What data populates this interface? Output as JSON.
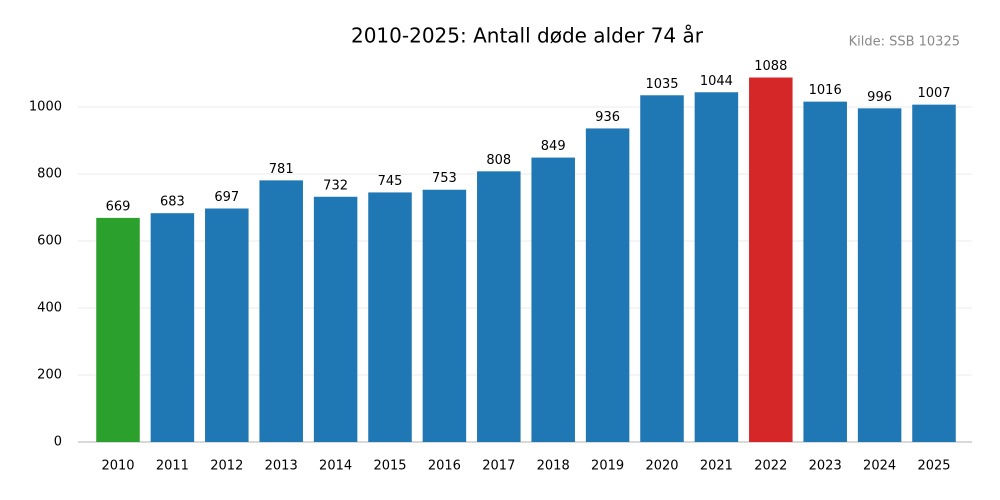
{
  "chart_data": {
    "type": "bar",
    "title": "2010-2025: Antall døde alder 74 år",
    "source": "Kilde: SSB 10325",
    "categories": [
      "2010",
      "2011",
      "2012",
      "2013",
      "2014",
      "2015",
      "2016",
      "2017",
      "2018",
      "2019",
      "2020",
      "2021",
      "2022",
      "2023",
      "2024",
      "2025"
    ],
    "values": [
      669,
      683,
      697,
      781,
      732,
      745,
      753,
      808,
      849,
      936,
      1035,
      1044,
      1088,
      1016,
      996,
      1007
    ],
    "colors": [
      "#2ca02c",
      "#1f77b4",
      "#1f77b4",
      "#1f77b4",
      "#1f77b4",
      "#1f77b4",
      "#1f77b4",
      "#1f77b4",
      "#1f77b4",
      "#1f77b4",
      "#1f77b4",
      "#1f77b4",
      "#d62728",
      "#1f77b4",
      "#1f77b4",
      "#1f77b4"
    ],
    "ylim": [
      0,
      1130
    ],
    "yticks": [
      0,
      200,
      400,
      600,
      800,
      1000
    ],
    "grid": true
  }
}
